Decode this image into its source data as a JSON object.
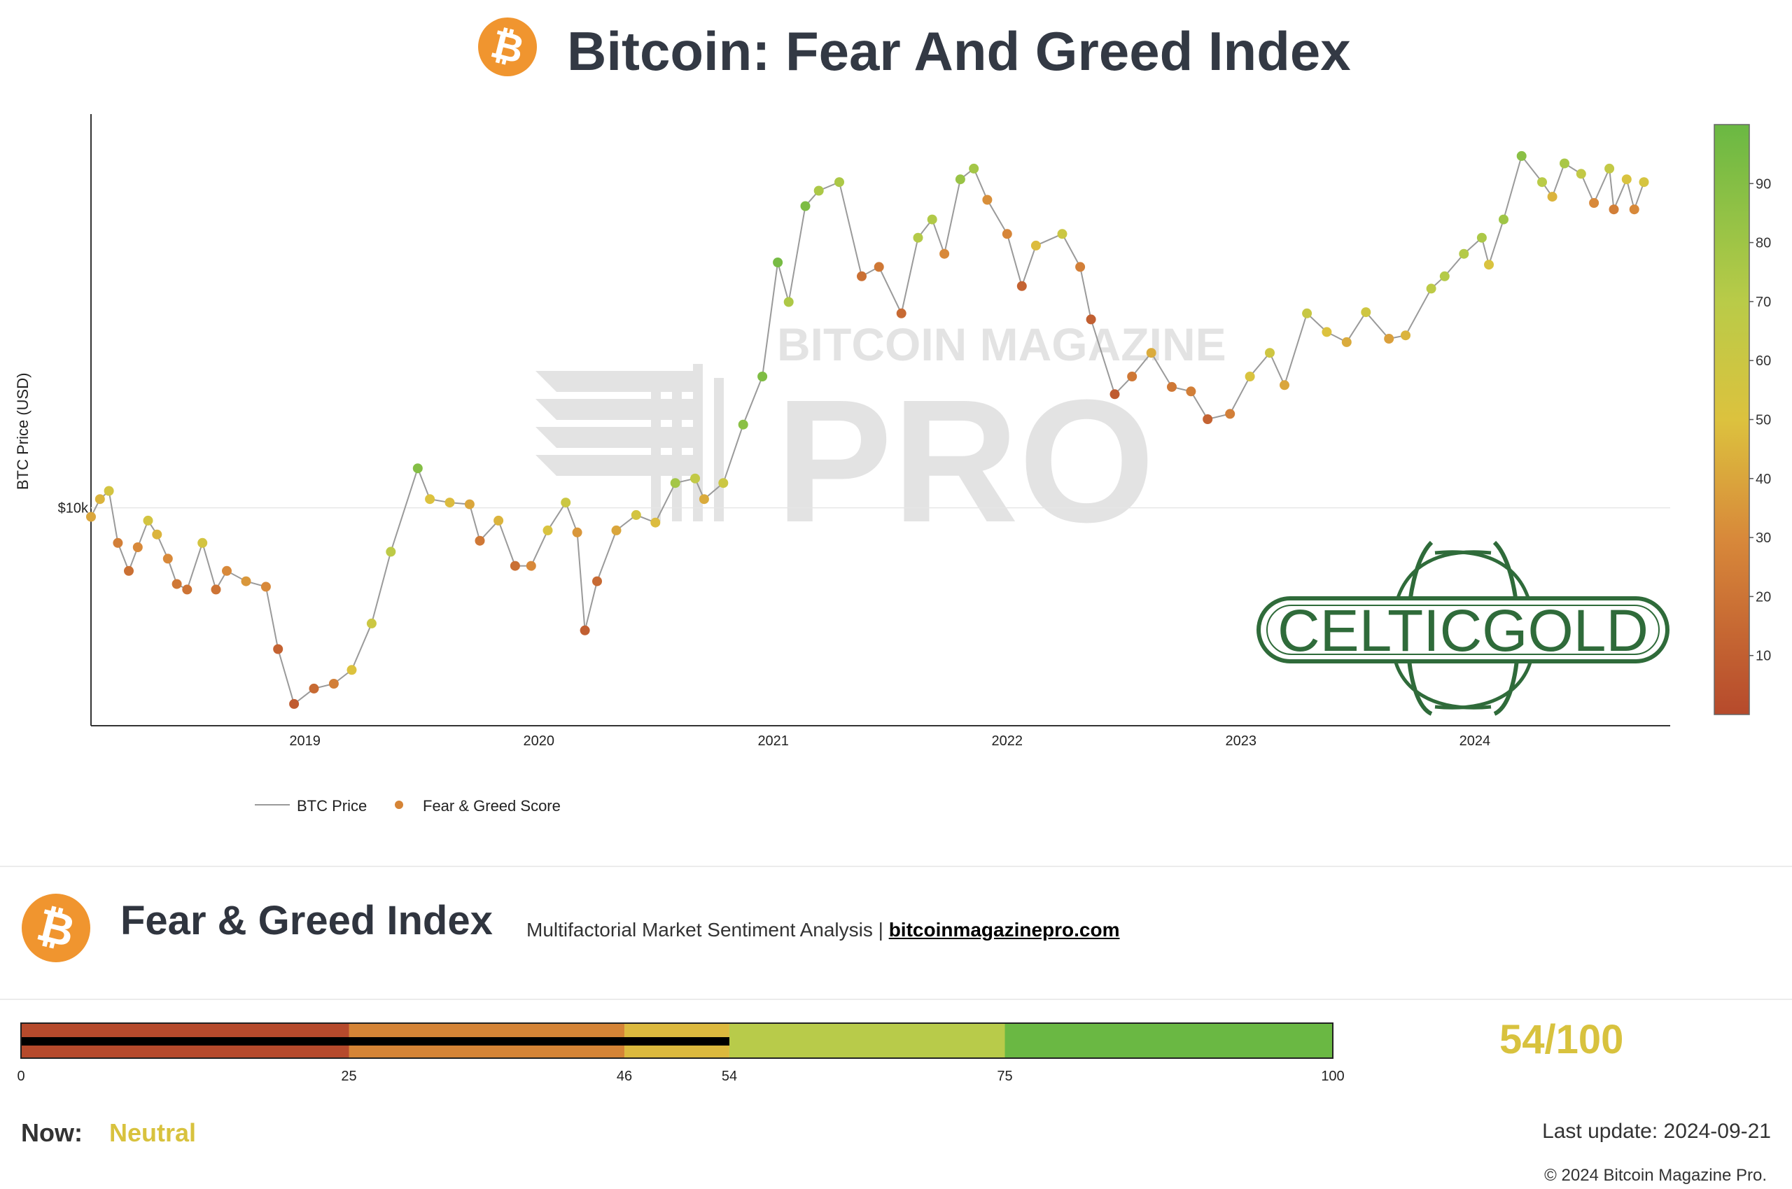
{
  "header": {
    "title": "Bitcoin: Fear And Greed Index"
  },
  "watermark": {
    "line1": "BITCOIN MAGAZINE",
    "line2": "PRO"
  },
  "logo_overlay": {
    "text": "CELTICGOLD"
  },
  "chart_data": {
    "type": "scatter",
    "ylabel": "BTC Price (USD)",
    "y_scale": "log",
    "y_tick_labels": [
      "$10k"
    ],
    "y_ticks": [
      10000
    ],
    "ylim": [
      3000,
      90000
    ],
    "x_ticks": [
      "2019",
      "2020",
      "2021",
      "2022",
      "2023",
      "2024"
    ],
    "xlim": [
      "2018-02-01",
      "2024-11-01"
    ],
    "legend": {
      "placement": "bottom-left",
      "items": [
        "BTC Price",
        "Fear & Greed Score"
      ]
    },
    "colorbar": {
      "ticks": [
        10,
        20,
        30,
        40,
        50,
        60,
        70,
        80,
        90
      ],
      "range": [
        0,
        100
      ]
    },
    "series": [
      {
        "name": "BTC Price",
        "points": [
          [
            "2018-02-01",
            9500,
            40
          ],
          [
            "2018-02-15",
            10500,
            45
          ],
          [
            "2018-03-01",
            11000,
            55
          ],
          [
            "2018-03-15",
            8200,
            25
          ],
          [
            "2018-04-01",
            7000,
            18
          ],
          [
            "2018-04-15",
            8000,
            30
          ],
          [
            "2018-05-01",
            9300,
            55
          ],
          [
            "2018-05-15",
            8600,
            45
          ],
          [
            "2018-06-01",
            7500,
            30
          ],
          [
            "2018-06-15",
            6500,
            22
          ],
          [
            "2018-07-01",
            6300,
            20
          ],
          [
            "2018-07-25",
            8200,
            55
          ],
          [
            "2018-08-15",
            6300,
            20
          ],
          [
            "2018-09-01",
            7000,
            30
          ],
          [
            "2018-10-01",
            6600,
            35
          ],
          [
            "2018-11-01",
            6400,
            30
          ],
          [
            "2018-11-20",
            4500,
            12
          ],
          [
            "2018-12-15",
            3300,
            8
          ],
          [
            "2019-01-15",
            3600,
            15
          ],
          [
            "2019-02-15",
            3700,
            25
          ],
          [
            "2019-03-15",
            4000,
            50
          ],
          [
            "2019-04-15",
            5200,
            60
          ],
          [
            "2019-05-15",
            7800,
            68
          ],
          [
            "2019-06-26",
            12500,
            90
          ],
          [
            "2019-07-15",
            10500,
            50
          ],
          [
            "2019-08-15",
            10300,
            48
          ],
          [
            "2019-09-15",
            10200,
            40
          ],
          [
            "2019-10-01",
            8300,
            22
          ],
          [
            "2019-10-30",
            9300,
            45
          ],
          [
            "2019-11-25",
            7200,
            18
          ],
          [
            "2019-12-20",
            7200,
            30
          ],
          [
            "2020-01-15",
            8800,
            52
          ],
          [
            "2020-02-12",
            10300,
            60
          ],
          [
            "2020-03-01",
            8700,
            35
          ],
          [
            "2020-03-13",
            5000,
            10
          ],
          [
            "2020-04-01",
            6600,
            15
          ],
          [
            "2020-05-01",
            8800,
            40
          ],
          [
            "2020-06-01",
            9600,
            55
          ],
          [
            "2020-07-01",
            9200,
            48
          ],
          [
            "2020-08-01",
            11500,
            78
          ],
          [
            "2020-09-01",
            11800,
            65
          ],
          [
            "2020-09-15",
            10500,
            42
          ],
          [
            "2020-10-15",
            11500,
            60
          ],
          [
            "2020-11-15",
            16000,
            88
          ],
          [
            "2020-12-15",
            21000,
            92
          ],
          [
            "2021-01-08",
            40000,
            95
          ],
          [
            "2021-01-25",
            32000,
            74
          ],
          [
            "2021-02-20",
            55000,
            93
          ],
          [
            "2021-03-13",
            60000,
            75
          ],
          [
            "2021-04-14",
            63000,
            75
          ],
          [
            "2021-05-19",
            37000,
            18
          ],
          [
            "2021-06-15",
            39000,
            22
          ],
          [
            "2021-07-20",
            30000,
            15
          ],
          [
            "2021-08-15",
            46000,
            72
          ],
          [
            "2021-09-06",
            51000,
            73
          ],
          [
            "2021-09-25",
            42000,
            30
          ],
          [
            "2021-10-20",
            64000,
            82
          ],
          [
            "2021-11-10",
            68000,
            78
          ],
          [
            "2021-12-01",
            57000,
            32
          ],
          [
            "2022-01-01",
            47000,
            28
          ],
          [
            "2022-01-24",
            35000,
            12
          ],
          [
            "2022-02-15",
            44000,
            48
          ],
          [
            "2022-03-28",
            47000,
            60
          ],
          [
            "2022-04-25",
            39000,
            25
          ],
          [
            "2022-05-12",
            29000,
            10
          ],
          [
            "2022-06-18",
            19000,
            8
          ],
          [
            "2022-07-15",
            21000,
            22
          ],
          [
            "2022-08-14",
            24000,
            42
          ],
          [
            "2022-09-15",
            19800,
            22
          ],
          [
            "2022-10-15",
            19300,
            25
          ],
          [
            "2022-11-10",
            16500,
            12
          ],
          [
            "2022-12-15",
            17000,
            25
          ],
          [
            "2023-01-15",
            21000,
            52
          ],
          [
            "2023-02-15",
            24000,
            58
          ],
          [
            "2023-03-10",
            20000,
            40
          ],
          [
            "2023-04-14",
            30000,
            62
          ],
          [
            "2023-05-15",
            27000,
            50
          ],
          [
            "2023-06-15",
            25500,
            42
          ],
          [
            "2023-07-15",
            30200,
            58
          ],
          [
            "2023-08-20",
            26000,
            38
          ],
          [
            "2023-09-15",
            26500,
            45
          ],
          [
            "2023-10-25",
            34500,
            68
          ],
          [
            "2023-11-15",
            37000,
            72
          ],
          [
            "2023-12-15",
            42000,
            72
          ],
          [
            "2024-01-12",
            46000,
            75
          ],
          [
            "2024-01-23",
            39500,
            52
          ],
          [
            "2024-02-15",
            51000,
            80
          ],
          [
            "2024-03-14",
            73000,
            88
          ],
          [
            "2024-04-15",
            63000,
            70
          ],
          [
            "2024-05-01",
            58000,
            45
          ],
          [
            "2024-05-20",
            70000,
            76
          ],
          [
            "2024-06-15",
            66000,
            65
          ],
          [
            "2024-07-05",
            56000,
            30
          ],
          [
            "2024-07-29",
            68000,
            65
          ],
          [
            "2024-08-05",
            54000,
            25
          ],
          [
            "2024-08-25",
            64000,
            52
          ],
          [
            "2024-09-06",
            54000,
            30
          ],
          [
            "2024-09-21",
            63000,
            54
          ]
        ]
      }
    ]
  },
  "panel": {
    "title": "Fear & Greed Index",
    "subtitle": "Multifactorial Market Sentiment Analysis |",
    "link": "bitcoinmagazinepro.com"
  },
  "gauge": {
    "value": 54,
    "score_text": "54/100",
    "min_label": "0",
    "segments": [
      {
        "from": 0,
        "to": 25,
        "color": "#b64a2c"
      },
      {
        "from": 25,
        "to": 46,
        "color": "#d58436"
      },
      {
        "from": 46,
        "to": 54,
        "color": "#dcb93e"
      },
      {
        "from": 54,
        "to": 75,
        "color": "#b8cb4a"
      },
      {
        "from": 75,
        "to": 100,
        "color": "#6ab843"
      }
    ],
    "tick_labels": [
      "25",
      "46",
      "54",
      "75",
      "100"
    ]
  },
  "status": {
    "now_label": "Now:",
    "now_value": "Neutral",
    "last_update": "Last update: 2024-09-21",
    "copyright": "© 2024 Bitcoin Magazine Pro."
  },
  "colors": {
    "fear": "#b64a2c",
    "neutral": "#dcc23e",
    "greed": "#6ab843",
    "bitcoin_orange": "#f0952f"
  },
  "icons": [
    "bitcoin-icon",
    "bitcoin-icon"
  ]
}
